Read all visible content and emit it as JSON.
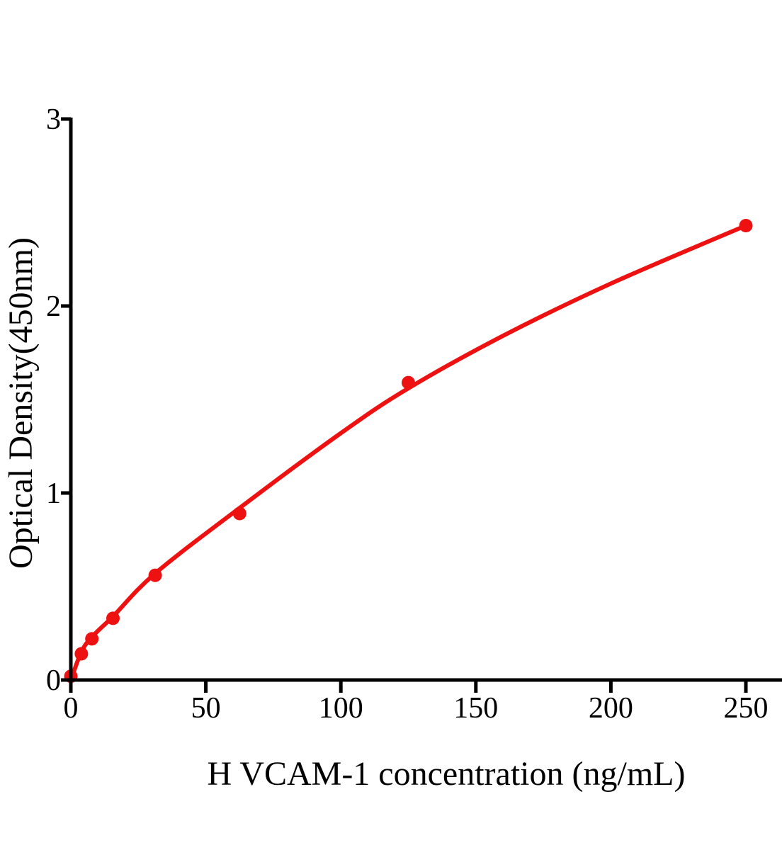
{
  "chart_data": {
    "type": "scatter",
    "title": "",
    "xlabel": "H VCAM-1 concentration (ng/mL)",
    "ylabel": "Optical Density(450nm)",
    "x_ticks": [
      0,
      50,
      100,
      150,
      200,
      250
    ],
    "y_ticks": [
      0,
      1,
      2,
      3
    ],
    "xlim": [
      0,
      263
    ],
    "ylim": [
      0,
      3
    ],
    "grid": false,
    "legend": false,
    "marker_color": "#EE1111",
    "line_color": "#EE1111",
    "axis_color": "#000000",
    "x_unit": "ng/mL",
    "y_unit": "OD 450nm",
    "points": [
      {
        "x": 0,
        "y": 0.02
      },
      {
        "x": 3.9,
        "y": 0.14
      },
      {
        "x": 7.8,
        "y": 0.22
      },
      {
        "x": 15.6,
        "y": 0.33
      },
      {
        "x": 31.25,
        "y": 0.56
      },
      {
        "x": 62.5,
        "y": 0.89
      },
      {
        "x": 125,
        "y": 1.59
      },
      {
        "x": 250,
        "y": 2.43
      }
    ],
    "curve_points": [
      {
        "x": 0,
        "y": 0.0
      },
      {
        "x": 3.9,
        "y": 0.15
      },
      {
        "x": 7.8,
        "y": 0.23
      },
      {
        "x": 15.6,
        "y": 0.34
      },
      {
        "x": 31.25,
        "y": 0.57
      },
      {
        "x": 62.5,
        "y": 0.92
      },
      {
        "x": 100,
        "y": 1.32
      },
      {
        "x": 125,
        "y": 1.56
      },
      {
        "x": 160,
        "y": 1.84
      },
      {
        "x": 200,
        "y": 2.12
      },
      {
        "x": 250,
        "y": 2.43
      }
    ]
  }
}
